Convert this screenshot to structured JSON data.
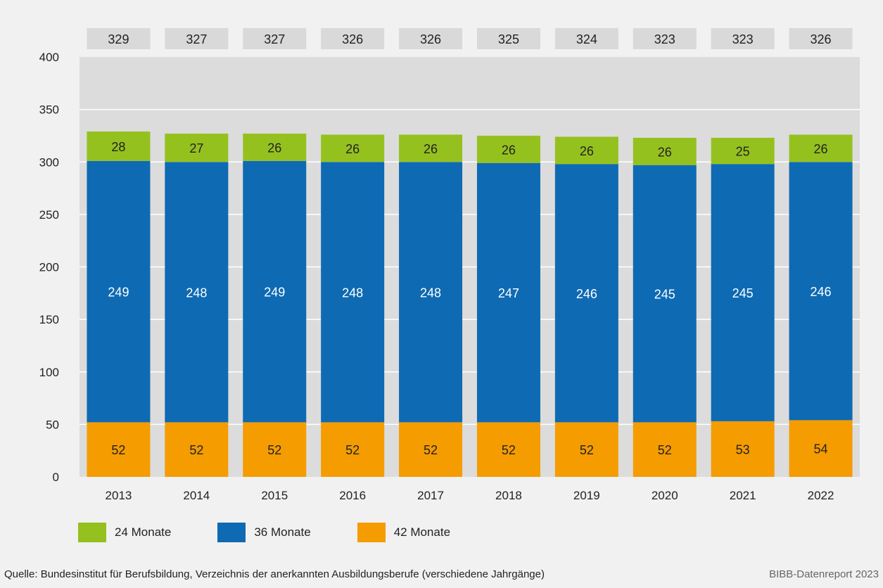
{
  "chart_data": {
    "type": "bar",
    "stacked": true,
    "categories": [
      "2013",
      "2014",
      "2015",
      "2016",
      "2017",
      "2018",
      "2019",
      "2020",
      "2021",
      "2022"
    ],
    "series": [
      {
        "name": "42 Monate",
        "color": "#f59c00",
        "values": [
          52,
          52,
          52,
          52,
          52,
          52,
          52,
          52,
          53,
          54
        ]
      },
      {
        "name": "36 Monate",
        "color": "#0e6ab3",
        "values": [
          249,
          248,
          249,
          248,
          248,
          247,
          246,
          245,
          245,
          246
        ]
      },
      {
        "name": "24 Monate",
        "color": "#95c11f",
        "values": [
          28,
          27,
          26,
          26,
          26,
          26,
          26,
          26,
          25,
          26
        ]
      }
    ],
    "totals": [
      329,
      327,
      327,
      326,
      326,
      325,
      324,
      323,
      323,
      326
    ],
    "ylim": [
      0,
      400
    ],
    "yticks": [
      0,
      50,
      100,
      150,
      200,
      250,
      300,
      350,
      400
    ],
    "grid": true
  },
  "legend": [
    {
      "label": "24 Monate",
      "color": "#95c11f"
    },
    {
      "label": "36 Monate",
      "color": "#0e6ab3"
    },
    {
      "label": "42 Monate",
      "color": "#f59c00"
    }
  ],
  "footer": {
    "source": "Quelle: Bundesinstitut für Berufsbildung, Verzeichnis der anerkannten Ausbildungsberufe (verschiedene Jahrgänge)",
    "credit": "BIBB-Datenreport 2023"
  }
}
